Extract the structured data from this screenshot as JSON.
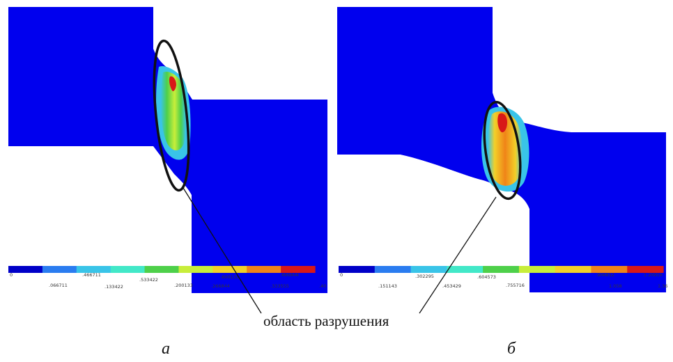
{
  "callout_label": "область разрушения",
  "panels": [
    {
      "letter": "а",
      "scale_top": [
        "0",
        ".466711",
        ".533422",
        ".600133",
        ".666844"
      ],
      "scale_bottom": [
        ".066711",
        ".133422",
        ".200133",
        ".266844",
        ".333555",
        ".40"
      ]
    },
    {
      "letter": "б",
      "scale_top": [
        "0",
        ".302295",
        ".604573",
        ".906852",
        "1.20916"
      ],
      "scale_bottom": [
        ".151143",
        ".453429",
        ".755716",
        "1.058",
        "1.36"
      ]
    }
  ],
  "colors": {
    "background": "#ffffff",
    "body": "#0000ee",
    "ellipse": "#111111",
    "scale": [
      "#0000c8",
      "#2a7cf0",
      "#39c4e8",
      "#42e8c8",
      "#4ed04a",
      "#c8ee3a",
      "#f2d028",
      "#f08418",
      "#d81818"
    ]
  }
}
